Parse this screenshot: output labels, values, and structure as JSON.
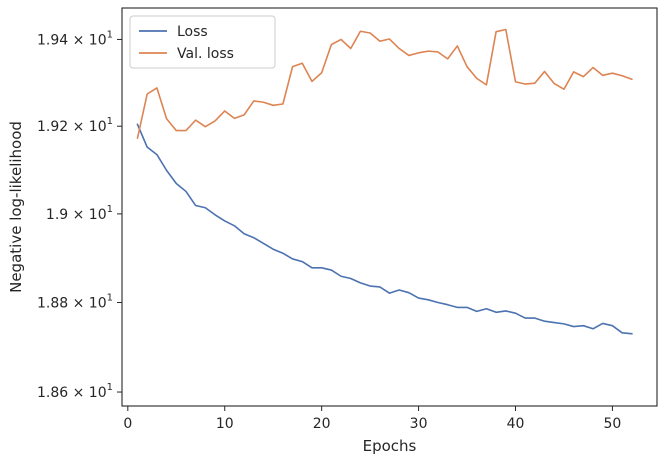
{
  "chart_data": {
    "type": "line",
    "xlabel": "Epochs",
    "ylabel": "Negative log-likelihood",
    "yscale": "log",
    "xlim": [
      -0.6,
      54.6
    ],
    "ylim": [
      18.569,
      19.473
    ],
    "x_ticks": [
      0,
      10,
      20,
      30,
      40,
      50
    ],
    "x_tick_labels": [
      "0",
      "10",
      "20",
      "30",
      "40",
      "50"
    ],
    "y_ticks": [
      18.6,
      18.8,
      19.0,
      19.2,
      19.4
    ],
    "y_tick_mantissas": [
      "1.86",
      "1.88",
      "1.9",
      "1.92",
      "1.94"
    ],
    "y_tick_base": "10",
    "y_tick_exp": "1",
    "grid": false,
    "legend_position": "top-left",
    "x": [
      1,
      2,
      3,
      4,
      5,
      6,
      7,
      8,
      9,
      10,
      11,
      12,
      13,
      14,
      15,
      16,
      17,
      18,
      19,
      20,
      21,
      22,
      23,
      24,
      25,
      26,
      27,
      28,
      29,
      30,
      31,
      32,
      33,
      34,
      35,
      36,
      37,
      38,
      39,
      40,
      41,
      42,
      43,
      44,
      45,
      46,
      47,
      48,
      49,
      50,
      51,
      52
    ],
    "series": [
      {
        "name": "Loss",
        "color": "#4c72b0",
        "values": [
          19.204,
          19.152,
          19.135,
          19.099,
          19.069,
          19.051,
          19.019,
          19.014,
          18.998,
          18.984,
          18.973,
          18.955,
          18.946,
          18.933,
          18.92,
          18.911,
          18.898,
          18.892,
          18.878,
          18.878,
          18.873,
          18.859,
          18.854,
          18.844,
          18.837,
          18.835,
          18.821,
          18.828,
          18.822,
          18.81,
          18.806,
          18.8,
          18.795,
          18.789,
          18.789,
          18.78,
          18.786,
          18.778,
          18.781,
          18.776,
          18.765,
          18.765,
          18.758,
          18.755,
          18.752,
          18.746,
          18.748,
          18.741,
          18.753,
          18.748,
          18.732,
          18.73
        ]
      },
      {
        "name": "Val. loss",
        "color": "#dd8452",
        "values": [
          19.173,
          19.274,
          19.288,
          19.217,
          19.19,
          19.19,
          19.214,
          19.199,
          19.212,
          19.235,
          19.218,
          19.226,
          19.258,
          19.255,
          19.248,
          19.251,
          19.337,
          19.345,
          19.303,
          19.323,
          19.388,
          19.4,
          19.379,
          19.419,
          19.415,
          19.396,
          19.401,
          19.379,
          19.363,
          19.369,
          19.373,
          19.371,
          19.355,
          19.385,
          19.337,
          19.31,
          19.295,
          19.418,
          19.423,
          19.302,
          19.297,
          19.299,
          19.326,
          19.298,
          19.285,
          19.325,
          19.314,
          19.335,
          19.317,
          19.322,
          19.316,
          19.308
        ]
      }
    ]
  }
}
